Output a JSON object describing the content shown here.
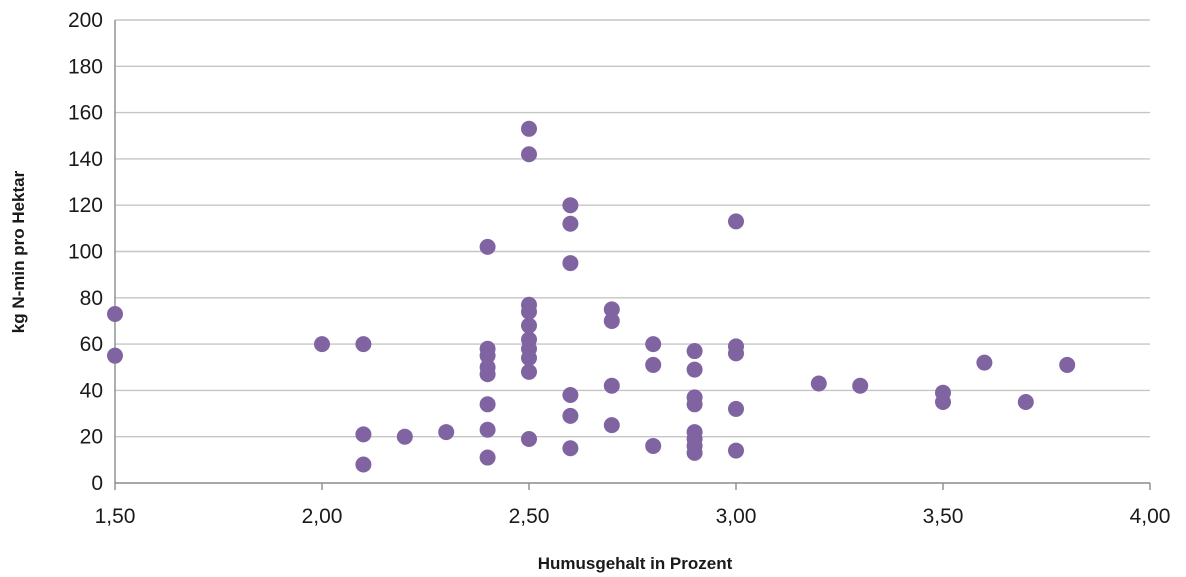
{
  "chart_data": {
    "type": "scatter",
    "title": "",
    "xlabel": "Humusgehalt in Prozent",
    "ylabel": "kg N-min pro Hektar",
    "xlim": [
      1.5,
      4.0
    ],
    "ylim": [
      0,
      200
    ],
    "x_ticks": [
      1.5,
      2.0,
      2.5,
      3.0,
      3.5,
      4.0
    ],
    "x_tick_labels": [
      "1,50",
      "2,00",
      "2,50",
      "3,00",
      "3,50",
      "4,00"
    ],
    "y_ticks": [
      0,
      20,
      40,
      60,
      80,
      100,
      120,
      140,
      160,
      180,
      200
    ],
    "y_tick_labels": [
      "0",
      "20",
      "40",
      "60",
      "80",
      "100",
      "120",
      "140",
      "160",
      "180",
      "200"
    ],
    "grid": "horizontal",
    "legend": "none",
    "marker_color": "#8064a2",
    "series": [
      {
        "points": [
          [
            1.5,
            73
          ],
          [
            1.5,
            55
          ],
          [
            2.0,
            60
          ],
          [
            2.1,
            60
          ],
          [
            2.1,
            21
          ],
          [
            2.1,
            8
          ],
          [
            2.2,
            20
          ],
          [
            2.3,
            22
          ],
          [
            2.4,
            102
          ],
          [
            2.4,
            58
          ],
          [
            2.4,
            55
          ],
          [
            2.4,
            50
          ],
          [
            2.4,
            47
          ],
          [
            2.4,
            34
          ],
          [
            2.4,
            23
          ],
          [
            2.4,
            11
          ],
          [
            2.5,
            153
          ],
          [
            2.5,
            142
          ],
          [
            2.5,
            77
          ],
          [
            2.5,
            74
          ],
          [
            2.5,
            68
          ],
          [
            2.5,
            62
          ],
          [
            2.5,
            58
          ],
          [
            2.5,
            54
          ],
          [
            2.5,
            48
          ],
          [
            2.5,
            19
          ],
          [
            2.6,
            120
          ],
          [
            2.6,
            112
          ],
          [
            2.6,
            95
          ],
          [
            2.6,
            38
          ],
          [
            2.6,
            29
          ],
          [
            2.6,
            15
          ],
          [
            2.7,
            75
          ],
          [
            2.7,
            70
          ],
          [
            2.7,
            42
          ],
          [
            2.7,
            25
          ],
          [
            2.8,
            60
          ],
          [
            2.8,
            51
          ],
          [
            2.8,
            16
          ],
          [
            2.9,
            57
          ],
          [
            2.9,
            49
          ],
          [
            2.9,
            37
          ],
          [
            2.9,
            34
          ],
          [
            2.9,
            22
          ],
          [
            2.9,
            19
          ],
          [
            2.9,
            16
          ],
          [
            2.9,
            13
          ],
          [
            3.0,
            113
          ],
          [
            3.0,
            59
          ],
          [
            3.0,
            56
          ],
          [
            3.0,
            32
          ],
          [
            3.0,
            14
          ],
          [
            3.2,
            43
          ],
          [
            3.3,
            42
          ],
          [
            3.5,
            39
          ],
          [
            3.5,
            35
          ],
          [
            3.6,
            52
          ],
          [
            3.7,
            35
          ],
          [
            3.8,
            51
          ]
        ]
      }
    ]
  }
}
